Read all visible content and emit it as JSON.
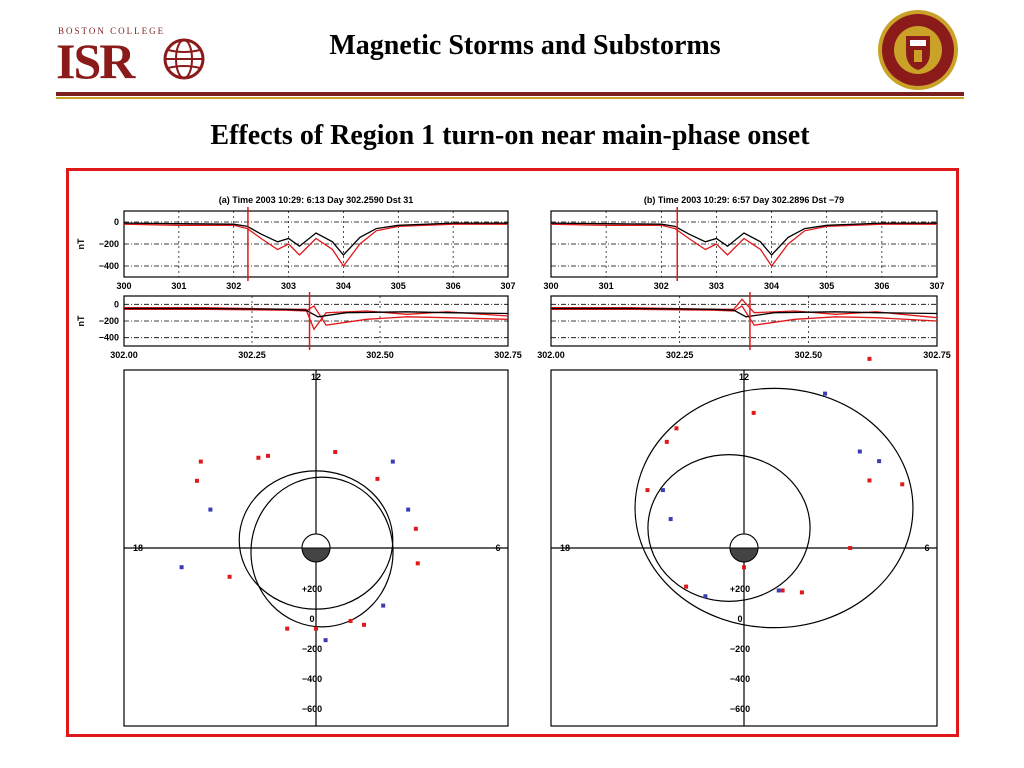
{
  "header": {
    "logo_small_text": "BOSTON COLLEGE",
    "logo_text": "ISR",
    "title": "Magnetic Storms  and Substorms",
    "subtitle": "Effects of Region 1 turn-on near main-phase onset"
  },
  "colors": {
    "brand": "#8b1a1a",
    "gold": "#c9a227",
    "frame": "#e0181a",
    "series_red": "#e0181a",
    "series_black": "#000000",
    "points_blue": "#3c3cb4"
  },
  "chart_data": [
    {
      "type": "line",
      "panel": "a",
      "title": "(a) Time 2003 10:29: 6:13 Day 302.2590 Dst 31",
      "top_plot": {
        "ylabel": "nT",
        "yticks": [
          "0",
          "−200",
          "−400"
        ],
        "ylim": [
          -500,
          100
        ],
        "xlim": [
          300,
          307
        ],
        "xticks": [
          "300",
          "301",
          "302",
          "303",
          "304",
          "305",
          "306",
          "307"
        ],
        "series": [
          {
            "color": "red",
            "x": [
              300,
              301,
              302,
              302.25,
              302.5,
              302.8,
              303,
              303.2,
              303.5,
              303.8,
              304,
              304.3,
              304.6,
              305,
              306,
              307
            ],
            "y": [
              -20,
              -30,
              -30,
              -60,
              -150,
              -250,
              -200,
              -300,
              -150,
              -250,
              -400,
              -200,
              -80,
              -40,
              -20,
              -20
            ]
          },
          {
            "color": "black",
            "x": [
              300,
              301,
              302,
              302.25,
              302.5,
              302.8,
              303,
              303.2,
              303.5,
              303.8,
              304,
              304.3,
              304.6,
              305,
              306,
              307
            ],
            "y": [
              -10,
              -15,
              -20,
              -40,
              -110,
              -180,
              -150,
              -220,
              -100,
              -180,
              -300,
              -140,
              -60,
              -30,
              -10,
              -10
            ]
          }
        ],
        "marker_x": 302.259
      },
      "bottom_plot": {
        "ylabel": "nT",
        "yticks": [
          "0",
          "−200",
          "−400"
        ],
        "ylim": [
          -500,
          100
        ],
        "xlim": [
          301.8,
          302.75
        ],
        "xticks": [
          "302.00",
          "302.25",
          "302.50",
          "302.75"
        ],
        "series": [
          {
            "color": "red",
            "x": [
              301.8,
              302,
              302.2,
              302.25,
              302.27,
              302.3,
              302.4,
              302.5,
              302.6,
              302.75
            ],
            "y": [
              -40,
              -40,
              -60,
              -60,
              -300,
              -100,
              -80,
              -120,
              -90,
              -140
            ]
          },
          {
            "color": "red",
            "x": [
              301.8,
              302,
              302.2,
              302.25,
              302.27,
              302.3,
              302.4,
              302.5,
              302.6,
              302.75
            ],
            "y": [
              -60,
              -60,
              -70,
              -80,
              -20,
              -250,
              -180,
              -150,
              -160,
              -180
            ]
          },
          {
            "color": "black",
            "x": [
              301.8,
              302,
              302.2,
              302.25,
              302.28,
              302.35,
              302.5,
              302.6,
              302.75
            ],
            "y": [
              -50,
              -50,
              -60,
              -70,
              -150,
              -100,
              -90,
              -100,
              -110
            ]
          }
        ],
        "marker_x": 302.259
      },
      "polar_plot": {
        "labels": {
          "top": "12",
          "left": "18",
          "right": "6"
        },
        "radial_ticks": [
          "+200",
          "0",
          "−200",
          "−400",
          "−600"
        ],
        "red_points": [
          [
            -0.3,
            0.47
          ],
          [
            -0.25,
            0.48
          ],
          [
            -0.6,
            0.45
          ],
          [
            0.1,
            0.5
          ],
          [
            0.32,
            0.36
          ],
          [
            0.53,
            -0.08
          ],
          [
            0.52,
            0.1
          ],
          [
            -0.45,
            -0.15
          ],
          [
            0.18,
            -0.38
          ],
          [
            0.25,
            -0.4
          ],
          [
            -0.15,
            -0.42
          ],
          [
            0.0,
            -0.42
          ],
          [
            -0.62,
            0.35
          ]
        ],
        "blue_points": [
          [
            -0.55,
            0.2
          ],
          [
            0.4,
            0.45
          ],
          [
            0.48,
            0.2
          ],
          [
            -0.7,
            -0.1
          ],
          [
            0.35,
            -0.3
          ],
          [
            0.05,
            -0.48
          ]
        ]
      }
    },
    {
      "type": "line",
      "panel": "b",
      "title": "(b) Time 2003 10:29: 6:57 Day 302.2896 Dst −79",
      "top_plot": {
        "ylabel": "",
        "yticks": [],
        "ylim": [
          -500,
          100
        ],
        "xlim": [
          300,
          307
        ],
        "xticks": [
          "300",
          "301",
          "302",
          "303",
          "304",
          "305",
          "306",
          "307"
        ],
        "series": [
          {
            "color": "red",
            "x": [
              300,
              301,
              302,
              302.25,
              302.5,
              302.8,
              303,
              303.2,
              303.5,
              303.8,
              304,
              304.3,
              304.6,
              305,
              306,
              307
            ],
            "y": [
              -20,
              -30,
              -30,
              -60,
              -150,
              -250,
              -200,
              -300,
              -150,
              -250,
              -400,
              -200,
              -80,
              -40,
              -20,
              -20
            ]
          },
          {
            "color": "black",
            "x": [
              300,
              301,
              302,
              302.25,
              302.5,
              302.8,
              303,
              303.2,
              303.5,
              303.8,
              304,
              304.3,
              304.6,
              305,
              306,
              307
            ],
            "y": [
              -10,
              -15,
              -20,
              -40,
              -110,
              -180,
              -150,
              -220,
              -100,
              -180,
              -300,
              -140,
              -60,
              -30,
              -10,
              -10
            ]
          }
        ],
        "marker_x": 302.2896
      },
      "bottom_plot": {
        "ylabel": "",
        "yticks": [],
        "ylim": [
          -500,
          100
        ],
        "xlim": [
          301.8,
          302.75
        ],
        "xticks": [
          "302.00",
          "302.25",
          "302.50",
          "302.75"
        ],
        "series": [
          {
            "color": "red",
            "x": [
              301.8,
              302,
              302.2,
              302.25,
              302.27,
              302.3,
              302.4,
              302.5,
              302.6,
              302.75
            ],
            "y": [
              -40,
              -40,
              -60,
              -60,
              60,
              -100,
              -80,
              -120,
              -90,
              -160
            ]
          },
          {
            "color": "red",
            "x": [
              301.8,
              302,
              302.2,
              302.25,
              302.27,
              302.3,
              302.4,
              302.5,
              302.6,
              302.75
            ],
            "y": [
              -60,
              -60,
              -70,
              -80,
              -20,
              -250,
              -180,
              -150,
              -160,
              -200
            ]
          },
          {
            "color": "black",
            "x": [
              301.8,
              302,
              302.2,
              302.25,
              302.28,
              302.35,
              302.5,
              302.6,
              302.75
            ],
            "y": [
              -50,
              -50,
              -60,
              -70,
              -150,
              -100,
              -90,
              -100,
              -110
            ]
          }
        ],
        "marker_x": 302.2896
      },
      "polar_plot": {
        "labels": {
          "top": "12",
          "left": "18",
          "right": "6"
        },
        "radial_ticks": [
          "+200",
          "0",
          "−200",
          "−400",
          "−600"
        ],
        "red_points": [
          [
            -0.35,
            0.62
          ],
          [
            -0.4,
            0.55
          ],
          [
            0.05,
            0.7
          ],
          [
            0.65,
            0.98
          ],
          [
            0.65,
            0.35
          ],
          [
            0.82,
            0.33
          ],
          [
            -0.5,
            0.3
          ],
          [
            0.55,
            0.0
          ],
          [
            -0.3,
            -0.2
          ],
          [
            0.3,
            -0.23
          ],
          [
            0.2,
            -0.22
          ],
          [
            0.0,
            -0.1
          ]
        ],
        "blue_points": [
          [
            -0.42,
            0.3
          ],
          [
            -0.38,
            0.15
          ],
          [
            0.42,
            0.8
          ],
          [
            0.6,
            0.5
          ],
          [
            0.7,
            0.45
          ],
          [
            0.18,
            -0.22
          ],
          [
            -0.2,
            -0.25
          ]
        ]
      }
    }
  ]
}
